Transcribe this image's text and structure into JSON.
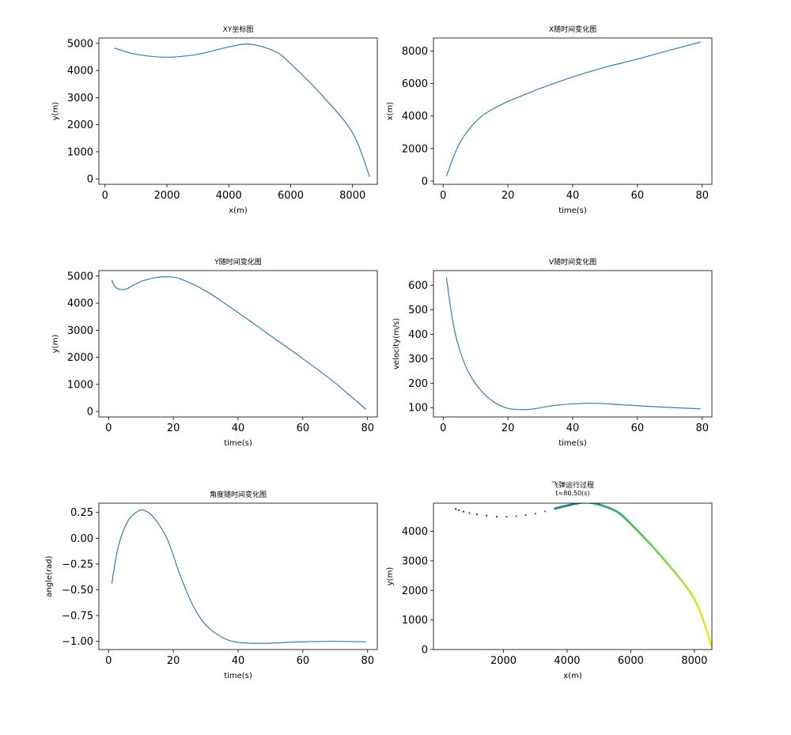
{
  "chart_data": [
    {
      "type": "line",
      "title": "XY坐标图",
      "xlabel": "x(m)",
      "ylabel": "y(m)",
      "xlim": [
        -200,
        8800
      ],
      "ylim": [
        -200,
        5200
      ],
      "xticks": [
        0,
        2000,
        4000,
        6000,
        8000
      ],
      "yticks": [
        0,
        1000,
        2000,
        3000,
        4000,
        5000
      ],
      "grid": false,
      "color": "#3a7ca8",
      "series": [
        {
          "x": [
            300,
            1000,
            2000,
            3000,
            4000,
            4700,
            5500,
            6000,
            7000,
            8000,
            8550
          ],
          "y": [
            4830,
            4600,
            4490,
            4600,
            4870,
            4970,
            4700,
            4250,
            3100,
            1700,
            80
          ]
        }
      ]
    },
    {
      "type": "line",
      "title": "X随时间变化图",
      "xlabel": "time(s)",
      "ylabel": "x(m)",
      "xlim": [
        -3,
        83
      ],
      "ylim": [
        -200,
        8800
      ],
      "xticks": [
        0,
        20,
        40,
        60,
        80
      ],
      "yticks": [
        0,
        2000,
        4000,
        6000,
        8000
      ],
      "grid": false,
      "color": "#3a7ca8",
      "series": [
        {
          "x": [
            1,
            3,
            5,
            8,
            12,
            16,
            20,
            25,
            30,
            40,
            50,
            60,
            70,
            79.5
          ],
          "y": [
            300,
            1400,
            2300,
            3200,
            4000,
            4500,
            4900,
            5300,
            5700,
            6400,
            7000,
            7500,
            8050,
            8550
          ]
        }
      ]
    },
    {
      "type": "line",
      "title": "Y随时间变化图",
      "xlabel": "time(s)",
      "ylabel": "y(m)",
      "xlim": [
        -3,
        83
      ],
      "ylim": [
        -200,
        5200
      ],
      "xticks": [
        0,
        20,
        40,
        60,
        80
      ],
      "yticks": [
        0,
        1000,
        2000,
        3000,
        4000,
        5000
      ],
      "grid": false,
      "color": "#3a7ca8",
      "series": [
        {
          "x": [
            1,
            2,
            4,
            6,
            10,
            15,
            18,
            22,
            30,
            40,
            50,
            60,
            70,
            79.5
          ],
          "y": [
            4850,
            4600,
            4500,
            4550,
            4800,
            4950,
            4970,
            4900,
            4450,
            3650,
            2800,
            1950,
            1050,
            80
          ]
        }
      ]
    },
    {
      "type": "line",
      "title": "V随时间变化图",
      "xlabel": "time(s)",
      "ylabel": "velocity(m/s)",
      "xlim": [
        -3,
        83
      ],
      "ylim": [
        62,
        660
      ],
      "xticks": [
        0,
        20,
        40,
        60,
        80
      ],
      "yticks": [
        100,
        200,
        300,
        400,
        500,
        600
      ],
      "grid": false,
      "color": "#3a7ca8",
      "series": [
        {
          "x": [
            1,
            3,
            5,
            8,
            12,
            16,
            20,
            24,
            28,
            35,
            45,
            55,
            65,
            79.5
          ],
          "y": [
            630,
            450,
            340,
            240,
            165,
            120,
            97,
            92,
            95,
            110,
            118,
            112,
            104,
            95
          ]
        }
      ]
    },
    {
      "type": "line",
      "title": "角度随时间变化图",
      "xlabel": "time(s)",
      "ylabel": "angle(rad)",
      "xlim": [
        -3,
        83
      ],
      "ylim": [
        -1.08,
        0.34
      ],
      "xticks": [
        0,
        20,
        40,
        60,
        80
      ],
      "yticks": [
        0.25,
        0.0,
        -0.25,
        -0.5,
        -0.75,
        -1.0
      ],
      "ytick_labels": [
        "0.25",
        "0.00",
        "−0.25",
        "−0.50",
        "−0.75",
        "−1.00"
      ],
      "grid": false,
      "color": "#3a7ca8",
      "series": [
        {
          "x": [
            1,
            3,
            6,
            9,
            11,
            14,
            18,
            22,
            26,
            30,
            35,
            40,
            48,
            55,
            60,
            70,
            79.5
          ],
          "y": [
            -0.44,
            -0.08,
            0.17,
            0.26,
            0.27,
            0.2,
            0.0,
            -0.35,
            -0.65,
            -0.84,
            -0.96,
            -1.01,
            -1.02,
            -1.01,
            -1.005,
            -1.0,
            -1.005
          ]
        }
      ]
    },
    {
      "type": "scatter",
      "title": "飞弹运行过程",
      "subtitle": "t=80.50(s)",
      "xlabel": "x(m)",
      "ylabel": "y(m)",
      "xlim": [
        -200,
        8550
      ],
      "ylim": [
        0,
        4950
      ],
      "xticks": [
        2000,
        4000,
        6000,
        8000
      ],
      "yticks": [
        0,
        1000,
        2000,
        3000,
        4000
      ],
      "grid": false,
      "colormap": [
        "#440154",
        "#3b528b",
        "#21918c",
        "#5ec962",
        "#fde725"
      ],
      "series": [
        {
          "x": [
            500,
            1000,
            2000,
            3000,
            4000,
            4700,
            5500,
            6000,
            7000,
            8000,
            8550
          ],
          "y": [
            4750,
            4600,
            4490,
            4600,
            4870,
            4970,
            4700,
            4250,
            3100,
            1700,
            80
          ]
        }
      ]
    }
  ]
}
